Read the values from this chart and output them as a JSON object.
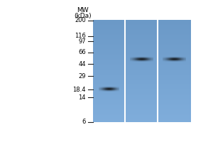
{
  "background_color": "#ffffff",
  "mw_labels": [
    "200",
    "116",
    "97",
    "66",
    "44",
    "29",
    "18.4",
    "14",
    "6"
  ],
  "mw_values": [
    200,
    116,
    97,
    66,
    44,
    29,
    18.4,
    14,
    6
  ],
  "mw_title_line1": "MW",
  "mw_title_line2": "(kDa)",
  "num_lanes": 3,
  "gel_log_min": 6,
  "gel_log_max": 200,
  "band_lane1_mw": 18.4,
  "band_lane23_mw": 52,
  "band_color": "#111111",
  "tick_color": "#222222",
  "font_size_mw_title": 6.5,
  "font_size_labels": 6.0,
  "gel_blue_r": 0.42,
  "gel_blue_g": 0.6,
  "gel_blue_b": 0.78
}
